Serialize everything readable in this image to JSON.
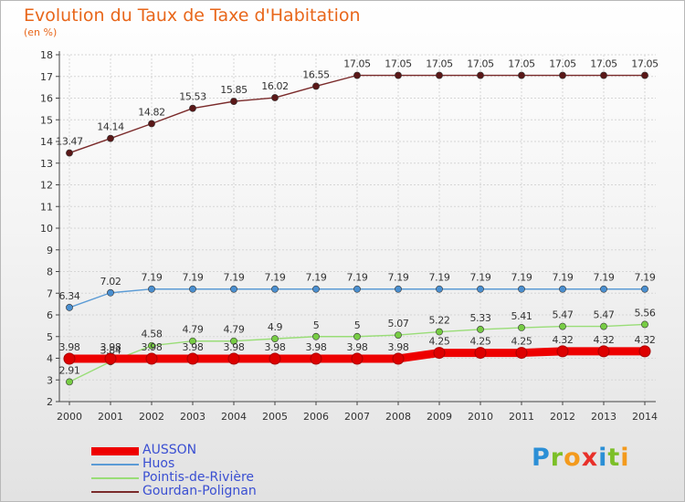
{
  "title": "Evolution du Taux de Taxe d'Habitation",
  "subtitle": "(en %)",
  "logo_letters": [
    {
      "ch": "P",
      "color": "#2b8fd6"
    },
    {
      "ch": "r",
      "color": "#7cbf28"
    },
    {
      "ch": "o",
      "color": "#f39a1d"
    },
    {
      "ch": "x",
      "color": "#e8302a"
    },
    {
      "ch": "i",
      "color": "#2b8fd6"
    },
    {
      "ch": "t",
      "color": "#7cbf28"
    },
    {
      "ch": "i",
      "color": "#f39a1d"
    }
  ],
  "chart_data": {
    "type": "line",
    "title": "Evolution du Taux de Taxe d'Habitation",
    "ylabel": "(en %)",
    "xlabel": "",
    "x": [
      "2000",
      "2001",
      "2002",
      "2003",
      "2004",
      "2005",
      "2006",
      "2007",
      "2008",
      "2009",
      "2010",
      "2011",
      "2012",
      "2013",
      "2014"
    ],
    "ylim": [
      2,
      18
    ],
    "yticks": [
      "2",
      "3",
      "4",
      "5",
      "6",
      "7",
      "8",
      "9",
      "10",
      "11",
      "12",
      "13",
      "14",
      "15",
      "16",
      "17",
      "18"
    ],
    "grid": true,
    "legend_position": "bottom-left",
    "series": [
      {
        "name": "AUSSON",
        "color": "#ee0000",
        "marker": "#dd0000",
        "width": "thick",
        "values": [
          3.98,
          3.98,
          3.98,
          3.98,
          3.98,
          3.98,
          3.98,
          3.98,
          3.98,
          4.25,
          4.25,
          4.25,
          4.32,
          4.32,
          4.32
        ],
        "labels": [
          "3.98",
          "3.98",
          "3.98",
          "3.98",
          "3.98",
          "3.98",
          "3.98",
          "3.98",
          "3.98",
          "4.25",
          "4.25",
          "4.25",
          "4.32",
          "4.32",
          "4.32"
        ]
      },
      {
        "name": "Huos",
        "color": "#5b9bd5",
        "marker": "#4a8fd0",
        "width": "thin",
        "values": [
          6.34,
          7.02,
          7.19,
          7.19,
          7.19,
          7.19,
          7.19,
          7.19,
          7.19,
          7.19,
          7.19,
          7.19,
          7.19,
          7.19,
          7.19
        ],
        "labels": [
          "6.34",
          "7.02",
          "7.19",
          "7.19",
          "7.19",
          "7.19",
          "7.19",
          "7.19",
          "7.19",
          "7.19",
          "7.19",
          "7.19",
          "7.19",
          "7.19",
          "7.19"
        ]
      },
      {
        "name": "Pointis-de-Rivière",
        "color": "#99dd77",
        "marker": "#77cc44",
        "width": "thin",
        "values": [
          2.91,
          3.84,
          4.58,
          4.79,
          4.79,
          4.9,
          5,
          5,
          5.07,
          5.22,
          5.33,
          5.41,
          5.47,
          5.47,
          5.56
        ],
        "labels": [
          "2.91",
          "3.84",
          "4.58",
          "4.79",
          "4.79",
          "4.9",
          "5",
          "5",
          "5.07",
          "5.22",
          "5.33",
          "5.41",
          "5.47",
          "5.47",
          "5.56"
        ]
      },
      {
        "name": "Gourdan-Polignan",
        "color": "#7a2a2a",
        "marker": "#5a1818",
        "width": "thin",
        "values": [
          13.47,
          14.14,
          14.82,
          15.53,
          15.85,
          16.02,
          16.55,
          17.05,
          17.05,
          17.05,
          17.05,
          17.05,
          17.05,
          17.05,
          17.05
        ],
        "labels": [
          "13.47",
          "14.14",
          "14.82",
          "15.53",
          "15.85",
          "16.02",
          "16.55",
          "17.05",
          "17.05",
          "17.05",
          "17.05",
          "17.05",
          "17.05",
          "17.05",
          "17.05"
        ]
      }
    ]
  }
}
